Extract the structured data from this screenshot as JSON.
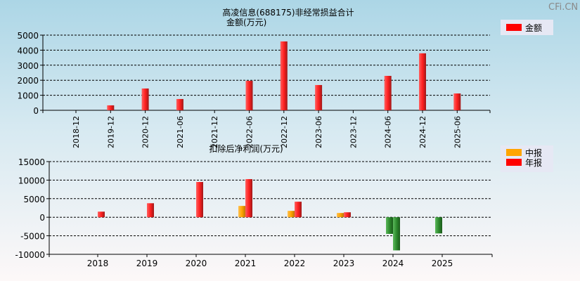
{
  "watermark": "CFi.CN",
  "chart_data": [
    {
      "type": "bar",
      "title": "高凌信息(688175)非经常损益合计",
      "subtitle": "金额(万元)",
      "categories": [
        "2018-12",
        "2019-12",
        "2020-12",
        "2021-06",
        "2021-12",
        "2022-06",
        "2022-12",
        "2023-06",
        "2023-12",
        "2024-06",
        "2024-12",
        "2025-06"
      ],
      "series": [
        {
          "name": "金额",
          "values": [
            0,
            330,
            1450,
            750,
            0,
            1960,
            4580,
            1680,
            0,
            2290,
            3790,
            1120
          ],
          "color": "#ff0000"
        }
      ],
      "ylim": [
        0,
        5000
      ],
      "yticks": [
        "0",
        "1000",
        "2000",
        "3000",
        "4000",
        "5000"
      ],
      "grid": true,
      "legend": "top-right"
    },
    {
      "type": "bar",
      "title": "扣除后净利润(万元)",
      "categories": [
        "2018",
        "2019",
        "2020",
        "2021",
        "2022",
        "2023",
        "2024",
        "2025"
      ],
      "series": [
        {
          "name": "中报",
          "values": [
            null,
            null,
            null,
            3040,
            1710,
            1140,
            -4500,
            -4370
          ],
          "color": "#ffa500"
        },
        {
          "name": "年报",
          "values": [
            1500,
            3770,
            9500,
            10270,
            4180,
            1330,
            -8940,
            null
          ],
          "color": "#ff0000"
        }
      ],
      "negative_color": "#2e8b2e",
      "ylim": [
        -10000,
        15000
      ],
      "yticks": [
        "-10000",
        "-5000",
        "0",
        "5000",
        "10000",
        "15000"
      ],
      "grid": true,
      "legend": "top-right"
    }
  ]
}
